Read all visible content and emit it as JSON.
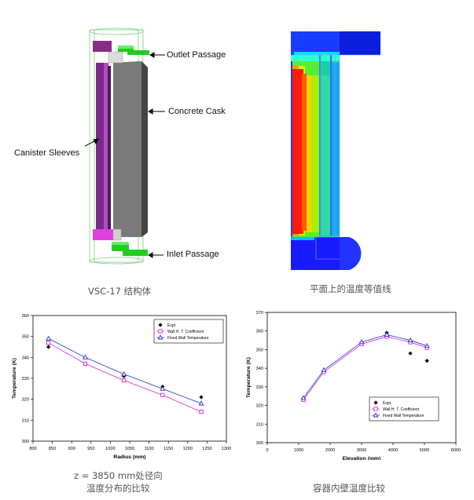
{
  "cask": {
    "labels": {
      "outlet": "Outlet Passage",
      "concrete": "Concrete Cask",
      "canister": "Canister Sleeves",
      "inlet": "Inlet Passage"
    },
    "caption": "VSC-17 结构体"
  },
  "contour": {
    "caption": "平面上的温度等值线"
  },
  "chart_data": [
    {
      "type": "line",
      "title": "",
      "xlabel": "Radius (mm)",
      "ylabel": "Temperature (K)",
      "xlim": [
        800,
        1300
      ],
      "ylim": [
        300,
        360
      ],
      "xticks": [
        800,
        850,
        900,
        950,
        1000,
        1050,
        1100,
        1150,
        1200,
        1250,
        1300
      ],
      "yticks": [
        300,
        310,
        320,
        330,
        340,
        350,
        360
      ],
      "legend_position": "top-right",
      "series": [
        {
          "name": "Expt",
          "marker": "diamond",
          "color": "#000000",
          "line": false,
          "x": [
            840,
            935,
            1035,
            1135,
            1235
          ],
          "y": [
            345,
            337,
            331,
            326,
            321
          ]
        },
        {
          "name": "Wall H. T. Coefficient",
          "marker": "square",
          "color": "#dd22dd",
          "line": true,
          "x": [
            840,
            935,
            1035,
            1135,
            1235
          ],
          "y": [
            347,
            337,
            329,
            322,
            314
          ]
        },
        {
          "name": "Fixed Wall Temperature",
          "marker": "triangle",
          "color": "#2233cc",
          "line": true,
          "x": [
            840,
            935,
            1035,
            1135,
            1235
          ],
          "y": [
            349,
            340,
            332,
            325,
            318
          ]
        }
      ],
      "caption_line1": "z = 3850 mm处径向",
      "caption_line2": "温度分布的比较"
    },
    {
      "type": "line",
      "title": "",
      "xlabel": "Elevation (mm)",
      "ylabel": "Temperature (K)",
      "xlim": [
        0,
        6000
      ],
      "ylim": [
        300,
        370
      ],
      "xticks": [
        0,
        1000,
        2000,
        3000,
        4000,
        5000,
        6000
      ],
      "yticks": [
        300,
        310,
        320,
        330,
        340,
        350,
        360,
        370
      ],
      "legend_position": "bottom-right",
      "series": [
        {
          "name": "Expt",
          "marker": "diamond",
          "color": "#000000",
          "line": false,
          "x": [
            1150,
            1800,
            3000,
            3800,
            4550,
            5080
          ],
          "y": [
            324,
            338,
            354,
            359,
            348,
            344
          ]
        },
        {
          "name": "Wall H. T. Coefficient",
          "marker": "square",
          "color": "#dd22dd",
          "line": true,
          "x": [
            1150,
            1800,
            3000,
            3800,
            4550,
            5080
          ],
          "y": [
            323,
            338,
            353,
            357,
            354,
            351
          ]
        },
        {
          "name": "Fixed Wall Temperature",
          "marker": "triangle",
          "color": "#2233cc",
          "line": true,
          "x": [
            1150,
            1800,
            3000,
            3800,
            4550,
            5080
          ],
          "y": [
            324,
            339,
            354,
            358,
            355,
            352
          ]
        }
      ],
      "caption": "容器内壁温度比较"
    }
  ]
}
